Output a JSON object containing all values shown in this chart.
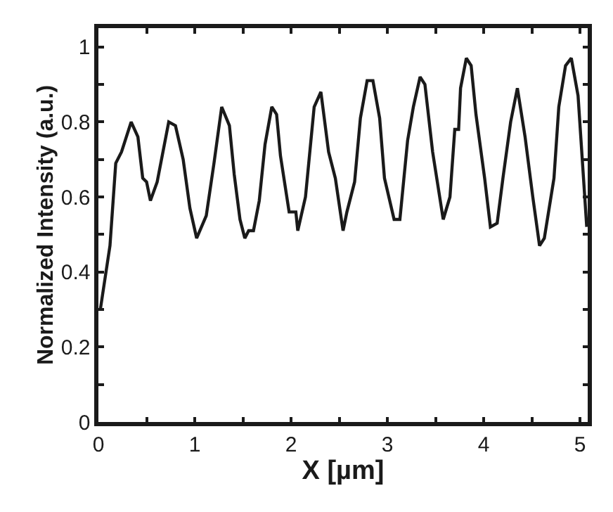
{
  "chart_data": {
    "type": "line",
    "xlabel": "X [µm]",
    "ylabel": "Normalized Intensity (a.u.)",
    "xlim": [
      0,
      5.08
    ],
    "ylim": [
      0,
      1.05
    ],
    "xticks": [
      0,
      {
        "value": 0.5,
        "label": null
      },
      1,
      {
        "value": 1.5,
        "label": null
      },
      2,
      {
        "value": 2.5,
        "label": null
      },
      3,
      {
        "value": 3.5,
        "label": null
      },
      4,
      {
        "value": 4.5,
        "label": null
      },
      5
    ],
    "yticks": [
      0,
      {
        "value": 0.1,
        "label": null
      },
      0.2,
      {
        "value": 0.3,
        "label": null
      },
      0.4,
      {
        "value": 0.5,
        "label": null
      },
      0.6,
      {
        "value": 0.7,
        "label": null
      },
      0.8,
      {
        "value": 0.9,
        "label": null
      },
      1
    ],
    "marker": "none",
    "line_style": "solid",
    "series": [
      {
        "color": "#1a1a1a",
        "x": [
          0.02,
          0.12,
          0.18,
          0.24,
          0.34,
          0.41,
          0.46,
          0.5,
          0.54,
          0.61,
          0.73,
          0.8,
          0.88,
          0.95,
          1.02,
          1.12,
          1.2,
          1.28,
          1.36,
          1.41,
          1.47,
          1.52,
          1.56,
          1.61,
          1.67,
          1.73,
          1.8,
          1.85,
          1.89,
          1.98,
          2.05,
          2.07,
          2.15,
          2.24,
          2.31,
          2.39,
          2.46,
          2.54,
          2.58,
          2.66,
          2.72,
          2.79,
          2.85,
          2.92,
          2.97,
          3.07,
          3.13,
          3.21,
          3.27,
          3.34,
          3.39,
          3.47,
          3.58,
          3.65,
          3.7,
          3.74,
          3.76,
          3.82,
          3.87,
          3.92,
          4.01,
          4.07,
          4.14,
          4.2,
          4.28,
          4.35,
          4.43,
          4.51,
          4.58,
          4.63,
          4.73,
          4.78,
          4.85,
          4.91,
          4.98,
          5.07
        ],
        "values": [
          0.3,
          0.47,
          0.69,
          0.72,
          0.8,
          0.76,
          0.65,
          0.64,
          0.59,
          0.64,
          0.8,
          0.79,
          0.7,
          0.57,
          0.49,
          0.55,
          0.69,
          0.84,
          0.79,
          0.66,
          0.54,
          0.49,
          0.51,
          0.51,
          0.59,
          0.74,
          0.84,
          0.82,
          0.71,
          0.56,
          0.56,
          0.51,
          0.6,
          0.84,
          0.88,
          0.72,
          0.65,
          0.51,
          0.56,
          0.64,
          0.81,
          0.91,
          0.91,
          0.81,
          0.65,
          0.54,
          0.54,
          0.75,
          0.84,
          0.92,
          0.9,
          0.72,
          0.54,
          0.6,
          0.78,
          0.78,
          0.89,
          0.97,
          0.95,
          0.82,
          0.65,
          0.52,
          0.53,
          0.65,
          0.8,
          0.89,
          0.76,
          0.6,
          0.47,
          0.49,
          0.65,
          0.84,
          0.95,
          0.97,
          0.87,
          0.52
        ]
      }
    ]
  }
}
